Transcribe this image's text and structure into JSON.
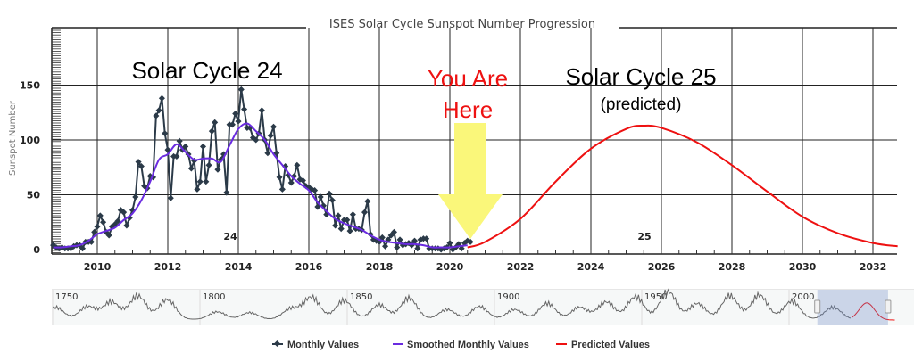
{
  "chart_data": {
    "type": "line",
    "title": "ISES Solar Cycle Sunspot Number Progression",
    "ylabel": "Sunspot Number",
    "xlabel": "",
    "xlim": [
      2008.7,
      2032.7
    ],
    "ylim": [
      0,
      190
    ],
    "x_ticks": [
      "2010",
      "2012",
      "2014",
      "2016",
      "2018",
      "2020",
      "2022",
      "2024",
      "2026",
      "2028",
      "2030",
      "2032"
    ],
    "y_ticks": [
      "0",
      "50",
      "100",
      "150"
    ],
    "grid": true,
    "legend_position": "bottom",
    "annotations": {
      "cycle24_title": "Solar Cycle 24",
      "cycle25_title": "Solar Cycle 25",
      "cycle25_sub": "(predicted)",
      "you_are_here_1": "You Are",
      "you_are_here_2": "Here",
      "cycle24_label": "24",
      "cycle25_label": "25"
    },
    "colors": {
      "monthly": "#2b3a48",
      "smoothed": "#6a2be0",
      "predicted": "#ee1111",
      "arrow": "#faf77a",
      "you_are_here": "#ee1111"
    },
    "series": [
      {
        "name": "Monthly Values",
        "start": 2008.75,
        "step_months": 1,
        "values": [
          4,
          2,
          1,
          2,
          1,
          1,
          1,
          3,
          4,
          4,
          1,
          7,
          7,
          7,
          16,
          21,
          31,
          25,
          16,
          13,
          21,
          23,
          26,
          36,
          34,
          22,
          29,
          36,
          48,
          80,
          76,
          58,
          56,
          67,
          66,
          122,
          127,
          138,
          106,
          91,
          47,
          85,
          85,
          99,
          91,
          94,
          87,
          74,
          81,
          55,
          62,
          94,
          62,
          77,
          108,
          116,
          73,
          82,
          87,
          52,
          114,
          114,
          124,
          117,
          146,
          128,
          111,
          111,
          102,
          100,
          106,
          127,
          100,
          88,
          104,
          112,
          88,
          66,
          55,
          76,
          68,
          61,
          67,
          77,
          64,
          63,
          58,
          57,
          55,
          54,
          39,
          48,
          40,
          32,
          51,
          45,
          22,
          31,
          19,
          27,
          27,
          17,
          32,
          19,
          19,
          18,
          34,
          44,
          14,
          9,
          8,
          7,
          11,
          3,
          9,
          13,
          16,
          2,
          9,
          4,
          5,
          6,
          4,
          8,
          1,
          9,
          10,
          10,
          1,
          1,
          1,
          1,
          0,
          1,
          2,
          6,
          0,
          2,
          5,
          1,
          6,
          8,
          7
        ]
      },
      {
        "name": "Smoothed Monthly Values",
        "x": [
          2008.75,
          2009,
          2009.25,
          2009.5,
          2009.75,
          2010,
          2010.25,
          2010.5,
          2010.75,
          2011,
          2011.25,
          2011.5,
          2011.75,
          2012,
          2012.25,
          2012.5,
          2012.75,
          2013,
          2013.25,
          2013.5,
          2013.75,
          2014,
          2014.25,
          2014.5,
          2014.75,
          2015,
          2015.25,
          2015.5,
          2015.75,
          2016,
          2016.25,
          2016.5,
          2016.75,
          2017,
          2017.25,
          2017.5,
          2017.75,
          2018,
          2018.25,
          2018.5,
          2018.75,
          2019,
          2019.25,
          2019.5,
          2019.75,
          2020,
          2020.25,
          2020.5
        ],
        "values": [
          2,
          2,
          3,
          4,
          8,
          14,
          17,
          20,
          27,
          33,
          45,
          62,
          82,
          87,
          96,
          89,
          82,
          83,
          83,
          80,
          95,
          110,
          115,
          108,
          100,
          87,
          77,
          67,
          60,
          54,
          43,
          35,
          28,
          24,
          21,
          18,
          13,
          9,
          7,
          6,
          5,
          5,
          4,
          2,
          2,
          2,
          3,
          4
        ]
      },
      {
        "name": "Predicted Values",
        "x": [
          2020.5,
          2021,
          2022,
          2023,
          2024,
          2025,
          2025.5,
          2026,
          2027,
          2028,
          2029,
          2030,
          2031,
          2032,
          2032.7
        ],
        "values": [
          2,
          7,
          28,
          62,
          92,
          110,
          113,
          111,
          98,
          77,
          53,
          30,
          15,
          6,
          3
        ]
      }
    ],
    "navigator": {
      "x_ticks": [
        "1750",
        "1800",
        "1850",
        "1900",
        "1950",
        "2000"
      ],
      "xlim": [
        1749,
        2035
      ],
      "selected_range": [
        2008.7,
        2032.7
      ],
      "cycle_peaks": [
        [
          1750,
          80
        ],
        [
          1761,
          85
        ],
        [
          1769,
          115
        ],
        [
          1778,
          155
        ],
        [
          1788,
          130
        ],
        [
          1805,
          50
        ],
        [
          1816,
          45
        ],
        [
          1830,
          70
        ],
        [
          1837,
          145
        ],
        [
          1848,
          125
        ],
        [
          1860,
          95
        ],
        [
          1870,
          140
        ],
        [
          1883,
          65
        ],
        [
          1894,
          85
        ],
        [
          1906,
          65
        ],
        [
          1917,
          105
        ],
        [
          1928,
          80
        ],
        [
          1937,
          115
        ],
        [
          1947,
          150
        ],
        [
          1958,
          185
        ],
        [
          1968,
          105
        ],
        [
          1979,
          155
        ],
        [
          1989,
          160
        ],
        [
          2000,
          120
        ],
        [
          2014,
          80
        ],
        [
          2025,
          70
        ]
      ]
    }
  }
}
